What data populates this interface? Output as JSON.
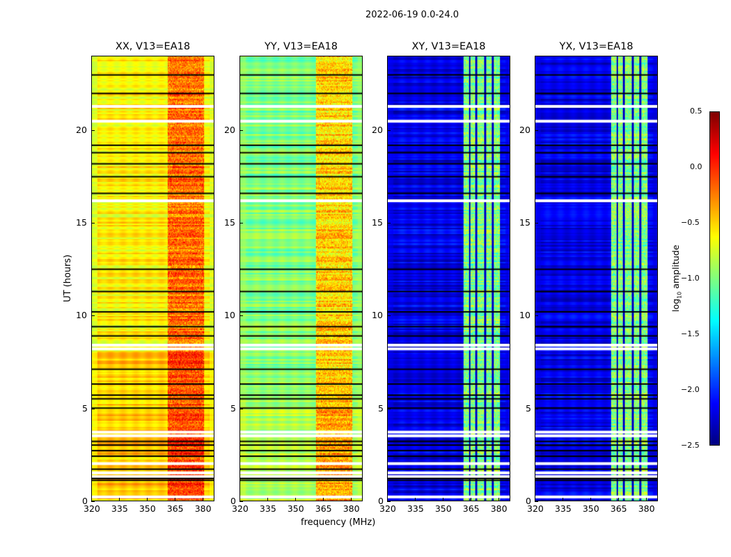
{
  "chart_data": {
    "type": "heatmap",
    "title": "2022-06-19 0.0-24.0",
    "xlabel": "frequency (MHz)",
    "ylabel": "UT (hours)",
    "xlim": [
      320,
      386.5
    ],
    "ylim": [
      0,
      24
    ],
    "xticks": [
      320,
      335,
      350,
      365,
      380
    ],
    "yticks": [
      0,
      5,
      10,
      15,
      20
    ],
    "colorbar": {
      "label": "log10 amplitude",
      "label_main": "log",
      "label_sub": "10",
      "label_rest": " amplitude",
      "range": [
        -2.5,
        0.5
      ],
      "ticks": [
        "0.5",
        "0.0",
        "−0.5",
        "−1.0",
        "−1.5",
        "−2.0",
        "−2.5"
      ],
      "colormap": "jet"
    },
    "rfi_band_mhz": [
      361,
      381
    ],
    "flagged_hours_white": [
      0.2,
      1.3,
      1.5,
      2.0,
      3.5,
      3.7,
      8.2,
      8.4,
      16.2,
      20.5,
      21.3
    ],
    "flagged_hours_black": [
      1.1,
      1.2,
      1.7,
      2.4,
      2.7,
      3.0,
      3.2,
      5.0,
      5.5,
      5.7,
      6.3,
      7.1,
      8.9,
      9.4,
      10.2,
      11.3,
      12.5,
      16.6,
      17.5,
      18.2,
      18.8,
      19.2,
      22.0,
      23.0
    ],
    "panels": [
      {
        "title": "XX, V13=EA18",
        "base": -0.6,
        "band": -0.2,
        "edge": -0.9
      },
      {
        "title": "YY, V13=EA18",
        "base": -1.0,
        "band": -0.5,
        "edge": -0.9
      },
      {
        "title": "XY, V13=EA18",
        "base": -2.2,
        "band": -1.0,
        "edge": -2.2
      },
      {
        "title": "YX, V13=EA18",
        "base": -2.2,
        "band": -1.0,
        "edge": -2.2
      }
    ]
  }
}
